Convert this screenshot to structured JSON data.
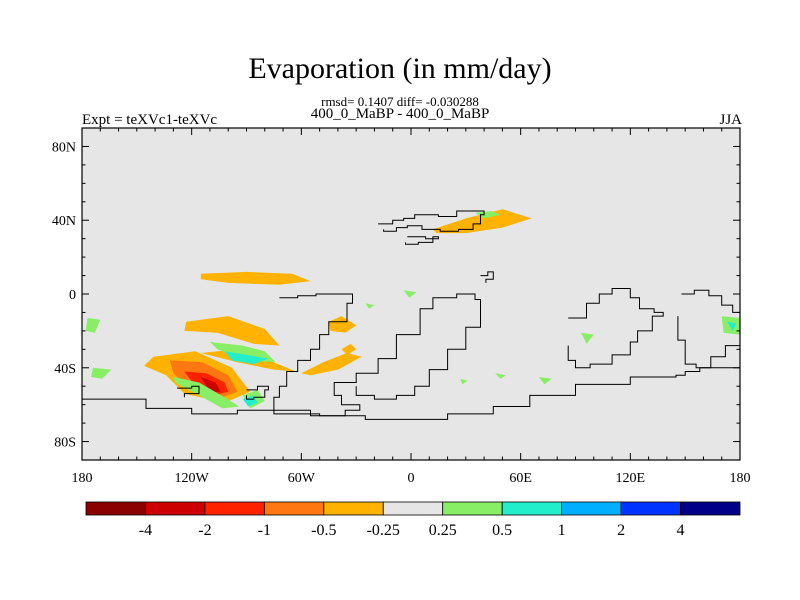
{
  "title": "Evaporation (in mm/day)",
  "stats": "rmsd= 0.1407 diff= -0.030288",
  "subtitle": "400_0_MaBP - 400_0_MaBP",
  "left_label": "Expt = teXVc1-teXVc",
  "right_label": "JJA",
  "chart_data": {
    "type": "heatmap",
    "title": "Evaporation (in mm/day)",
    "xlabel": "",
    "ylabel": "",
    "xlim": [
      -180,
      180
    ],
    "ylim": [
      -90,
      90
    ],
    "x_ticks": [
      {
        "value": -180,
        "label": "180"
      },
      {
        "value": -120,
        "label": "120W"
      },
      {
        "value": -60,
        "label": "60W"
      },
      {
        "value": 0,
        "label": "0"
      },
      {
        "value": 60,
        "label": "60E"
      },
      {
        "value": 120,
        "label": "120E"
      },
      {
        "value": 180,
        "label": "180"
      }
    ],
    "y_ticks": [
      {
        "value": 80,
        "label": "80N"
      },
      {
        "value": 40,
        "label": "40N"
      },
      {
        "value": 0,
        "label": "0"
      },
      {
        "value": -40,
        "label": "40S"
      },
      {
        "value": -80,
        "label": "80S"
      }
    ],
    "colorbar": {
      "colors": [
        "#8b0000",
        "#cc0000",
        "#ff2200",
        "#ff7711",
        "#ffb200",
        "#e6e6e6",
        "#88ee66",
        "#22eecc",
        "#00b0ff",
        "#0033ff",
        "#000088"
      ],
      "labels": [
        "-4",
        "-2",
        "-1",
        "-0.5",
        "-0.25",
        "0.25",
        "0.5",
        "1",
        "2",
        "4"
      ]
    },
    "fields": [
      {
        "level": "-0.25",
        "color": "#ffb200",
        "points": [
          [
            -141,
            -34
          ],
          [
            -118,
            -31
          ],
          [
            -98,
            -40
          ],
          [
            -88,
            -53
          ],
          [
            -102,
            -59
          ],
          [
            -124,
            -54
          ],
          [
            -134,
            -44
          ],
          [
            -146,
            -39
          ]
        ]
      },
      {
        "level": "-0.5",
        "color": "#ff7711",
        "points": [
          [
            -132,
            -36
          ],
          [
            -114,
            -37
          ],
          [
            -100,
            -44
          ],
          [
            -95,
            -53
          ],
          [
            -106,
            -57
          ],
          [
            -121,
            -52
          ],
          [
            -130,
            -43
          ]
        ]
      },
      {
        "level": "-1",
        "color": "#ff2200",
        "points": [
          [
            -124,
            -42
          ],
          [
            -112,
            -43
          ],
          [
            -102,
            -48
          ],
          [
            -100,
            -53
          ],
          [
            -108,
            -55
          ],
          [
            -118,
            -50
          ]
        ]
      },
      {
        "level": "-2",
        "color": "#cc0000",
        "points": [
          [
            -115,
            -45
          ],
          [
            -107,
            -48
          ],
          [
            -104,
            -53
          ],
          [
            -110,
            -53
          ]
        ]
      },
      {
        "level": "-0.25",
        "color": "#ffb200",
        "points": [
          [
            -123,
            -15
          ],
          [
            -100,
            -12
          ],
          [
            -80,
            -19
          ],
          [
            -72,
            -28
          ],
          [
            -86,
            -27
          ],
          [
            -106,
            -21
          ],
          [
            -124,
            -20
          ]
        ]
      },
      {
        "level": "-0.25",
        "color": "#ffb200",
        "points": [
          [
            -115,
            -32
          ],
          [
            -95,
            -30
          ],
          [
            -80,
            -35
          ],
          [
            -63,
            -42
          ],
          [
            -75,
            -41
          ],
          [
            -95,
            -37
          ]
        ]
      },
      {
        "level": "-0.25",
        "color": "#ffb200",
        "points": [
          [
            -60,
            -43
          ],
          [
            -48,
            -37
          ],
          [
            -35,
            -32
          ],
          [
            -27,
            -34
          ],
          [
            -40,
            -41
          ],
          [
            -55,
            -44
          ]
        ]
      },
      {
        "level": "-0.25",
        "color": "#ffb200",
        "points": [
          [
            -45,
            -15
          ],
          [
            -38,
            -12
          ],
          [
            -30,
            -17
          ],
          [
            -36,
            -21
          ],
          [
            -44,
            -20
          ]
        ]
      },
      {
        "level": "-0.25",
        "color": "#ffb200",
        "points": [
          [
            -38,
            -30
          ],
          [
            -33,
            -27
          ],
          [
            -30,
            -30
          ],
          [
            -35,
            -33
          ]
        ]
      },
      {
        "level": "-0.25",
        "color": "#ffb200",
        "points": [
          [
            -115,
            11
          ],
          [
            -90,
            12
          ],
          [
            -65,
            11
          ],
          [
            -55,
            7
          ],
          [
            -72,
            5
          ],
          [
            -100,
            6
          ],
          [
            -115,
            8
          ]
        ]
      },
      {
        "level": "-0.25",
        "color": "#ffb200",
        "points": [
          [
            12,
            35
          ],
          [
            30,
            41
          ],
          [
            50,
            46
          ],
          [
            66,
            41
          ],
          [
            50,
            36
          ],
          [
            30,
            33
          ],
          [
            14,
            33
          ]
        ]
      },
      {
        "level": "0.25",
        "color": "#88ee66",
        "points": [
          [
            -130,
            -45
          ],
          [
            -116,
            -48
          ],
          [
            -102,
            -56
          ],
          [
            -94,
            -61
          ],
          [
            -103,
            -62
          ],
          [
            -116,
            -55
          ],
          [
            -129,
            -48
          ]
        ]
      },
      {
        "level": "0.25",
        "color": "#88ee66",
        "points": [
          [
            -110,
            -26
          ],
          [
            -92,
            -28
          ],
          [
            -80,
            -31
          ],
          [
            -74,
            -37
          ],
          [
            -90,
            -36
          ],
          [
            -106,
            -30
          ]
        ]
      },
      {
        "level": "0.25",
        "color": "#88ee66",
        "points": [
          [
            -92,
            -55
          ],
          [
            -84,
            -52
          ],
          [
            -80,
            -58
          ],
          [
            -88,
            -62
          ]
        ]
      },
      {
        "level": "0.5",
        "color": "#22eecc",
        "points": [
          [
            -102,
            -31
          ],
          [
            -90,
            -33
          ],
          [
            -78,
            -35
          ],
          [
            -86,
            -38
          ],
          [
            -98,
            -36
          ]
        ]
      },
      {
        "level": "0.5",
        "color": "#22eecc",
        "points": [
          [
            -92,
            -57
          ],
          [
            -86,
            -55
          ],
          [
            -84,
            -59
          ],
          [
            -89,
            -61
          ]
        ]
      },
      {
        "level": "0.25",
        "color": "#88ee66",
        "points": [
          [
            -177,
            -13
          ],
          [
            -170,
            -14
          ],
          [
            -173,
            -21
          ],
          [
            -178,
            -20
          ]
        ]
      },
      {
        "level": "0.25",
        "color": "#88ee66",
        "points": [
          [
            -174,
            -40
          ],
          [
            -164,
            -41
          ],
          [
            -169,
            -46
          ],
          [
            -175,
            -45
          ]
        ]
      },
      {
        "level": "0.25",
        "color": "#88ee66",
        "points": [
          [
            -4,
            2
          ],
          [
            3,
            1
          ],
          [
            -1,
            -2
          ]
        ]
      },
      {
        "level": "0.25",
        "color": "#88ee66",
        "points": [
          [
            -25,
            -5
          ],
          [
            -20,
            -6
          ],
          [
            -23,
            -8
          ]
        ]
      },
      {
        "level": "0.25",
        "color": "#88ee66",
        "points": [
          [
            35,
            44
          ],
          [
            44,
            45
          ],
          [
            49,
            43
          ],
          [
            40,
            41
          ]
        ]
      },
      {
        "level": "0.25",
        "color": "#88ee66",
        "points": [
          [
            46,
            -43
          ],
          [
            52,
            -44
          ],
          [
            49,
            -46
          ]
        ]
      },
      {
        "level": "0.25",
        "color": "#88ee66",
        "points": [
          [
            70,
            -45
          ],
          [
            77,
            -46
          ],
          [
            73,
            -49
          ]
        ]
      },
      {
        "level": "0.25",
        "color": "#88ee66",
        "points": [
          [
            27,
            -46
          ],
          [
            31,
            -47
          ],
          [
            28,
            -49
          ]
        ]
      },
      {
        "level": "0.25",
        "color": "#88ee66",
        "points": [
          [
            93,
            -21
          ],
          [
            100,
            -22
          ],
          [
            96,
            -27
          ]
        ]
      },
      {
        "level": "0.25",
        "color": "#88ee66",
        "points": [
          [
            170,
            -12
          ],
          [
            180,
            -13
          ],
          [
            180,
            -22
          ],
          [
            171,
            -21
          ]
        ]
      },
      {
        "level": "0.5",
        "color": "#22eecc",
        "points": [
          [
            173,
            -15
          ],
          [
            178,
            -16
          ],
          [
            176,
            -20
          ]
        ]
      }
    ],
    "coastlines": [
      [
        [
          -180,
          -57
        ],
        [
          -160,
          -57
        ],
        [
          -145,
          -62
        ],
        [
          -120,
          -65
        ],
        [
          -95,
          -63
        ],
        [
          -75,
          -63
        ],
        [
          -55,
          -66
        ],
        [
          -25,
          -68
        ],
        [
          0,
          -68
        ],
        [
          20,
          -65
        ],
        [
          45,
          -61
        ],
        [
          65,
          -55
        ],
        [
          90,
          -49
        ],
        [
          120,
          -45
        ],
        [
          145,
          -44
        ],
        [
          150,
          -42
        ],
        [
          158,
          -40
        ],
        [
          180,
          -39
        ]
      ],
      [
        [
          -72,
          -2
        ],
        [
          -62,
          -1
        ],
        [
          -52,
          0
        ],
        [
          -38,
          0
        ],
        [
          -32,
          -5
        ],
        [
          -35,
          -15
        ],
        [
          -45,
          -22
        ],
        [
          -50,
          -30
        ],
        [
          -55,
          -36
        ],
        [
          -62,
          -42
        ],
        [
          -68,
          -50
        ],
        [
          -72,
          -56
        ],
        [
          -75,
          -65
        ],
        [
          -50,
          -66
        ],
        [
          -36,
          -63
        ],
        [
          -28,
          -60
        ],
        [
          -38,
          -55
        ],
        [
          -42,
          -48
        ],
        [
          -30,
          -43
        ],
        [
          -18,
          -35
        ],
        [
          -8,
          -22
        ],
        [
          5,
          -8
        ],
        [
          12,
          -2
        ],
        [
          25,
          0
        ],
        [
          35,
          -3
        ],
        [
          38,
          -18
        ],
        [
          30,
          -30
        ],
        [
          20,
          -41
        ],
        [
          10,
          -50
        ],
        [
          2,
          -55
        ],
        [
          -8,
          -57
        ],
        [
          -20,
          -55
        ],
        [
          -30,
          -50
        ]
      ],
      [
        [
          -90,
          -52
        ],
        [
          -84,
          -50
        ],
        [
          -78,
          -52
        ],
        [
          -80,
          -56
        ],
        [
          -86,
          -57
        ],
        [
          -90,
          -55
        ]
      ],
      [
        [
          -128,
          -51
        ],
        [
          -120,
          -50
        ],
        [
          -116,
          -54
        ],
        [
          -124,
          -56
        ]
      ],
      [
        [
          -18,
          38
        ],
        [
          -10,
          40
        ],
        [
          -4,
          41
        ],
        [
          2,
          43
        ],
        [
          8,
          43
        ],
        [
          15,
          42
        ],
        [
          25,
          45
        ],
        [
          35,
          45
        ],
        [
          40,
          43
        ],
        [
          38,
          38
        ],
        [
          34,
          35
        ],
        [
          26,
          34
        ],
        [
          16,
          35
        ],
        [
          6,
          37
        ],
        [
          -2,
          36
        ],
        [
          -8,
          34
        ],
        [
          -15,
          35
        ]
      ],
      [
        [
          -2,
          31
        ],
        [
          8,
          30
        ],
        [
          15,
          31
        ],
        [
          12,
          28
        ],
        [
          4,
          27
        ],
        [
          -3,
          28
        ]
      ],
      [
        [
          38,
          10
        ],
        [
          42,
          12
        ],
        [
          45,
          8
        ],
        [
          41,
          6
        ]
      ],
      [
        [
          86,
          -13
        ],
        [
          96,
          -5
        ],
        [
          103,
          0
        ],
        [
          110,
          3
        ],
        [
          120,
          -2
        ],
        [
          125,
          -8
        ],
        [
          133,
          -10
        ],
        [
          138,
          -12
        ],
        [
          132,
          -20
        ],
        [
          124,
          -26
        ],
        [
          120,
          -33
        ],
        [
          110,
          -38
        ],
        [
          98,
          -40
        ],
        [
          90,
          -36
        ],
        [
          86,
          -28
        ]
      ],
      [
        [
          148,
          0
        ],
        [
          155,
          2
        ],
        [
          163,
          -1
        ],
        [
          170,
          -6
        ],
        [
          176,
          -10
        ],
        [
          180,
          -13
        ],
        [
          180,
          -28
        ],
        [
          172,
          -34
        ],
        [
          164,
          -40
        ],
        [
          156,
          -38
        ],
        [
          150,
          -25
        ],
        [
          146,
          -12
        ]
      ]
    ]
  }
}
